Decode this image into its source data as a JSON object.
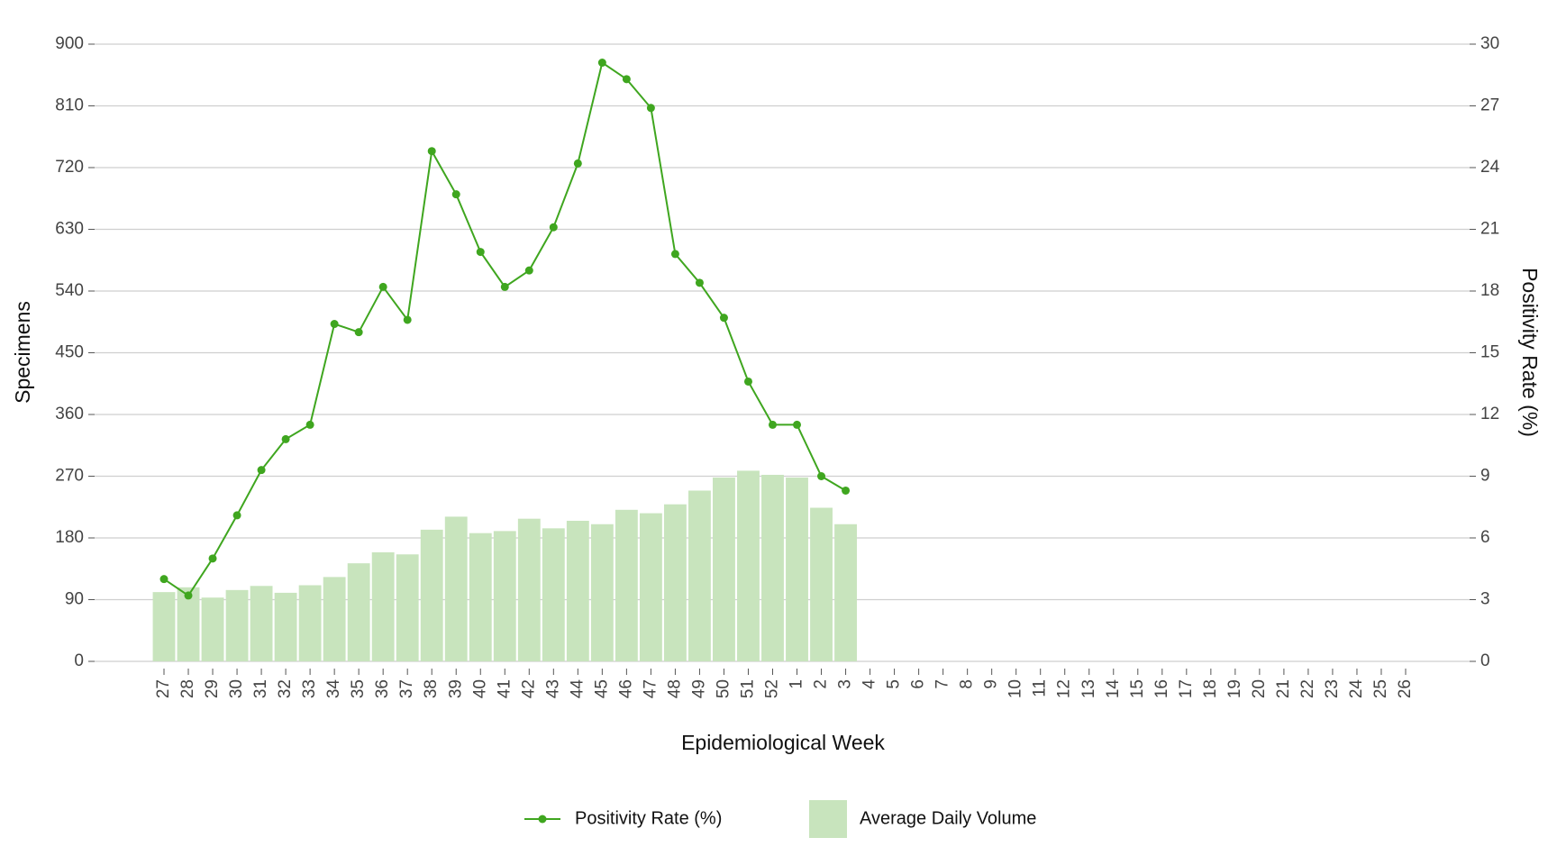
{
  "chart_data": {
    "type": "bar_line",
    "x_label": "Epidemiological Week",
    "y_label": "Specimens",
    "y2_label": "Positivity Rate (%)",
    "categories": [
      "27",
      "28",
      "29",
      "30",
      "31",
      "32",
      "33",
      "34",
      "35",
      "36",
      "37",
      "38",
      "39",
      "40",
      "41",
      "42",
      "43",
      "44",
      "45",
      "46",
      "47",
      "48",
      "49",
      "50",
      "51",
      "52",
      "1",
      "2",
      "3",
      "4",
      "5",
      "6",
      "7",
      "8",
      "9",
      "10",
      "11",
      "12",
      "13",
      "14",
      "15",
      "16",
      "17",
      "18",
      "19",
      "20",
      "21",
      "22",
      "23",
      "24",
      "25",
      "26"
    ],
    "series": [
      {
        "name": "Positivity Rate (%)",
        "type": "line",
        "axis": "y2",
        "color": "#3fa61f",
        "values": [
          4.0,
          3.2,
          5.0,
          7.1,
          9.3,
          10.8,
          11.5,
          16.4,
          16.0,
          18.2,
          16.6,
          24.8,
          22.7,
          19.9,
          18.2,
          19.0,
          21.1,
          24.2,
          29.1,
          28.3,
          26.9,
          19.8,
          18.4,
          16.7,
          13.6,
          11.5,
          11.5,
          9.0,
          8.3,
          null,
          null,
          null,
          null,
          null,
          null,
          null,
          null,
          null,
          null,
          null,
          null,
          null,
          null,
          null,
          null,
          null,
          null,
          null,
          null,
          null,
          null,
          null
        ]
      },
      {
        "name": "Average Daily Volume",
        "type": "bar",
        "color": "#c8e4bd",
        "values": [
          101,
          108,
          93,
          104,
          110,
          100,
          111,
          123,
          143,
          159,
          156,
          192,
          211,
          187,
          190,
          208,
          194,
          205,
          200,
          221,
          216,
          229,
          249,
          268,
          278,
          272,
          268,
          224,
          200,
          null,
          null,
          null,
          null,
          null,
          null,
          null,
          null,
          null,
          null,
          null,
          null,
          null,
          null,
          null,
          null,
          null,
          null,
          null,
          null,
          null,
          null,
          null
        ]
      }
    ],
    "ylim": [
      0,
      900
    ],
    "yticks": [
      0,
      90,
      180,
      270,
      360,
      450,
      540,
      630,
      720,
      810,
      900
    ],
    "y2lim": [
      0,
      30
    ],
    "y2ticks": [
      0,
      3,
      6,
      9,
      12,
      15,
      18,
      21,
      24,
      27,
      30
    ],
    "grid": true,
    "legend": "bottom"
  }
}
